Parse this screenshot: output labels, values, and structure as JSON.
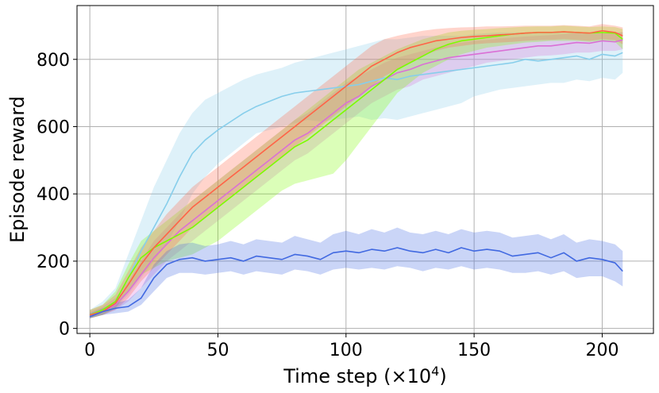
{
  "chart_data": {
    "type": "line",
    "title": "",
    "xlabel": "Time step (×10",
    "xlabel_exp": "4",
    "xlabel_close": ")",
    "ylabel": "Episode reward",
    "xlim": [
      -5,
      220
    ],
    "ylim": [
      -15,
      960
    ],
    "xticks": [
      0,
      50,
      100,
      150,
      200
    ],
    "yticks": [
      0,
      200,
      400,
      600,
      800
    ],
    "grid": true,
    "legend": "none",
    "series": [
      {
        "color": "#87ceeb",
        "band_color": "#87ceeb",
        "x": [
          0,
          5,
          10,
          15,
          20,
          25,
          30,
          35,
          40,
          45,
          50,
          55,
          60,
          65,
          70,
          75,
          80,
          85,
          90,
          95,
          100,
          105,
          110,
          115,
          120,
          125,
          130,
          135,
          140,
          145,
          150,
          155,
          160,
          165,
          170,
          175,
          180,
          185,
          190,
          195,
          200,
          205,
          208
        ],
        "values": [
          40,
          55,
          80,
          150,
          230,
          300,
          370,
          450,
          520,
          560,
          590,
          615,
          640,
          660,
          675,
          690,
          700,
          705,
          710,
          715,
          720,
          725,
          735,
          745,
          740,
          750,
          755,
          760,
          765,
          770,
          775,
          780,
          785,
          790,
          800,
          795,
          800,
          805,
          810,
          800,
          815,
          810,
          820
        ],
        "lower": [
          30,
          40,
          60,
          100,
          150,
          200,
          250,
          320,
          400,
          450,
          490,
          520,
          550,
          580,
          590,
          600,
          610,
          620,
          615,
          620,
          625,
          630,
          620,
          625,
          620,
          630,
          640,
          650,
          660,
          670,
          690,
          700,
          710,
          715,
          720,
          725,
          730,
          730,
          740,
          735,
          745,
          740,
          760
        ],
        "upper": [
          55,
          80,
          120,
          220,
          320,
          420,
          500,
          580,
          640,
          680,
          700,
          720,
          740,
          755,
          765,
          775,
          790,
          800,
          810,
          820,
          830,
          840,
          850,
          860,
          860,
          865,
          870,
          870,
          870,
          870,
          875,
          878,
          880,
          880,
          880,
          878,
          880,
          880,
          880,
          875,
          880,
          878,
          880
        ]
      },
      {
        "color": "#da70d6",
        "band_color": "#da70d6",
        "x": [
          0,
          5,
          10,
          15,
          20,
          25,
          30,
          35,
          40,
          45,
          50,
          55,
          60,
          65,
          70,
          75,
          80,
          85,
          90,
          95,
          100,
          105,
          110,
          115,
          120,
          125,
          130,
          135,
          140,
          145,
          150,
          155,
          160,
          165,
          170,
          175,
          180,
          185,
          190,
          195,
          200,
          205,
          208
        ],
        "values": [
          40,
          50,
          70,
          110,
          160,
          210,
          250,
          290,
          320,
          350,
          380,
          410,
          440,
          470,
          500,
          530,
          560,
          580,
          610,
          640,
          670,
          690,
          720,
          740,
          760,
          770,
          785,
          795,
          805,
          810,
          815,
          820,
          825,
          830,
          835,
          840,
          840,
          845,
          850,
          848,
          855,
          852,
          858
        ],
        "lower": [
          30,
          40,
          55,
          80,
          120,
          160,
          200,
          230,
          260,
          290,
          320,
          350,
          380,
          410,
          440,
          470,
          500,
          520,
          550,
          580,
          610,
          640,
          670,
          690,
          710,
          720,
          740,
          750,
          760,
          770,
          780,
          790,
          795,
          800,
          805,
          810,
          812,
          815,
          820,
          820,
          825,
          825,
          830
        ],
        "upper": [
          50,
          65,
          90,
          140,
          200,
          260,
          300,
          340,
          380,
          410,
          440,
          470,
          500,
          530,
          560,
          590,
          620,
          640,
          670,
          700,
          730,
          750,
          770,
          790,
          805,
          815,
          825,
          835,
          845,
          850,
          855,
          858,
          862,
          865,
          868,
          870,
          872,
          875,
          878,
          876,
          880,
          878,
          882
        ]
      },
      {
        "color": "#7cfc00",
        "band_color": "#7cfc00",
        "x": [
          0,
          5,
          10,
          15,
          20,
          25,
          30,
          35,
          40,
          45,
          50,
          55,
          60,
          65,
          70,
          75,
          80,
          85,
          90,
          95,
          100,
          105,
          110,
          115,
          120,
          125,
          130,
          135,
          140,
          145,
          150,
          155,
          160,
          165,
          170,
          175,
          180,
          185,
          190,
          195,
          200,
          205,
          208
        ],
        "values": [
          40,
          55,
          80,
          150,
          210,
          240,
          260,
          280,
          300,
          330,
          360,
          390,
          420,
          450,
          480,
          510,
          540,
          560,
          590,
          620,
          650,
          680,
          710,
          740,
          770,
          790,
          810,
          830,
          845,
          855,
          860,
          865,
          870,
          875,
          878,
          880,
          880,
          882,
          880,
          878,
          880,
          878,
          860
        ],
        "lower": [
          30,
          40,
          60,
          110,
          160,
          180,
          200,
          210,
          220,
          240,
          260,
          290,
          320,
          350,
          380,
          410,
          430,
          440,
          450,
          460,
          500,
          550,
          600,
          650,
          700,
          730,
          760,
          780,
          800,
          815,
          825,
          835,
          840,
          845,
          850,
          852,
          855,
          855,
          855,
          852,
          855,
          852,
          830
        ],
        "upper": [
          55,
          70,
          110,
          190,
          260,
          290,
          320,
          350,
          380,
          410,
          440,
          470,
          500,
          530,
          560,
          590,
          620,
          650,
          680,
          710,
          740,
          770,
          790,
          810,
          830,
          845,
          860,
          870,
          880,
          885,
          888,
          890,
          893,
          895,
          897,
          898,
          898,
          900,
          898,
          896,
          898,
          896,
          890
        ]
      },
      {
        "color": "#ff6347",
        "band_color": "#ff6347",
        "x": [
          0,
          5,
          10,
          15,
          20,
          25,
          30,
          35,
          40,
          45,
          50,
          55,
          60,
          65,
          70,
          75,
          80,
          85,
          90,
          95,
          100,
          105,
          110,
          115,
          120,
          125,
          130,
          135,
          140,
          145,
          150,
          155,
          160,
          165,
          170,
          175,
          180,
          185,
          190,
          195,
          200,
          205,
          208
        ],
        "values": [
          40,
          50,
          75,
          130,
          190,
          240,
          280,
          320,
          360,
          390,
          420,
          450,
          480,
          510,
          540,
          570,
          600,
          630,
          660,
          690,
          720,
          750,
          780,
          800,
          820,
          835,
          845,
          855,
          860,
          865,
          868,
          870,
          873,
          875,
          878,
          880,
          880,
          882,
          880,
          878,
          885,
          880,
          870
        ],
        "lower": [
          30,
          40,
          55,
          90,
          140,
          180,
          220,
          260,
          300,
          330,
          360,
          390,
          420,
          450,
          480,
          510,
          540,
          570,
          600,
          630,
          660,
          690,
          720,
          750,
          770,
          790,
          810,
          825,
          835,
          840,
          845,
          848,
          850,
          852,
          855,
          857,
          858,
          860,
          858,
          855,
          860,
          857,
          845
        ],
        "upper": [
          55,
          70,
          100,
          170,
          240,
          290,
          340,
          380,
          420,
          450,
          480,
          510,
          540,
          570,
          600,
          630,
          660,
          690,
          720,
          750,
          780,
          810,
          840,
          860,
          870,
          878,
          885,
          890,
          893,
          895,
          896,
          898,
          898,
          899,
          900,
          900,
          900,
          902,
          900,
          898,
          905,
          900,
          895
        ]
      },
      {
        "color": "#4169e1",
        "band_color": "#4169e1",
        "x": [
          0,
          5,
          10,
          15,
          20,
          25,
          30,
          35,
          40,
          45,
          50,
          55,
          60,
          65,
          70,
          75,
          80,
          85,
          90,
          95,
          100,
          105,
          110,
          115,
          120,
          125,
          130,
          135,
          140,
          145,
          150,
          155,
          160,
          165,
          170,
          175,
          180,
          185,
          190,
          195,
          200,
          205,
          208
        ],
        "values": [
          35,
          50,
          60,
          65,
          90,
          150,
          190,
          205,
          210,
          200,
          205,
          210,
          200,
          215,
          210,
          205,
          220,
          215,
          205,
          225,
          230,
          225,
          235,
          230,
          240,
          230,
          225,
          235,
          225,
          240,
          230,
          235,
          230,
          215,
          220,
          225,
          210,
          225,
          200,
          210,
          205,
          195,
          170
        ],
        "lower": [
          30,
          40,
          45,
          50,
          70,
          110,
          150,
          165,
          165,
          160,
          165,
          170,
          160,
          170,
          165,
          160,
          175,
          170,
          160,
          175,
          180,
          175,
          180,
          175,
          185,
          180,
          170,
          180,
          175,
          185,
          175,
          180,
          175,
          165,
          165,
          170,
          160,
          170,
          150,
          155,
          155,
          140,
          125
        ],
        "upper": [
          45,
          60,
          75,
          85,
          120,
          190,
          230,
          250,
          255,
          245,
          250,
          260,
          250,
          265,
          260,
          255,
          275,
          265,
          255,
          280,
          290,
          280,
          295,
          285,
          300,
          285,
          280,
          290,
          280,
          295,
          285,
          290,
          285,
          270,
          275,
          280,
          265,
          280,
          255,
          265,
          260,
          250,
          230
        ]
      }
    ]
  }
}
